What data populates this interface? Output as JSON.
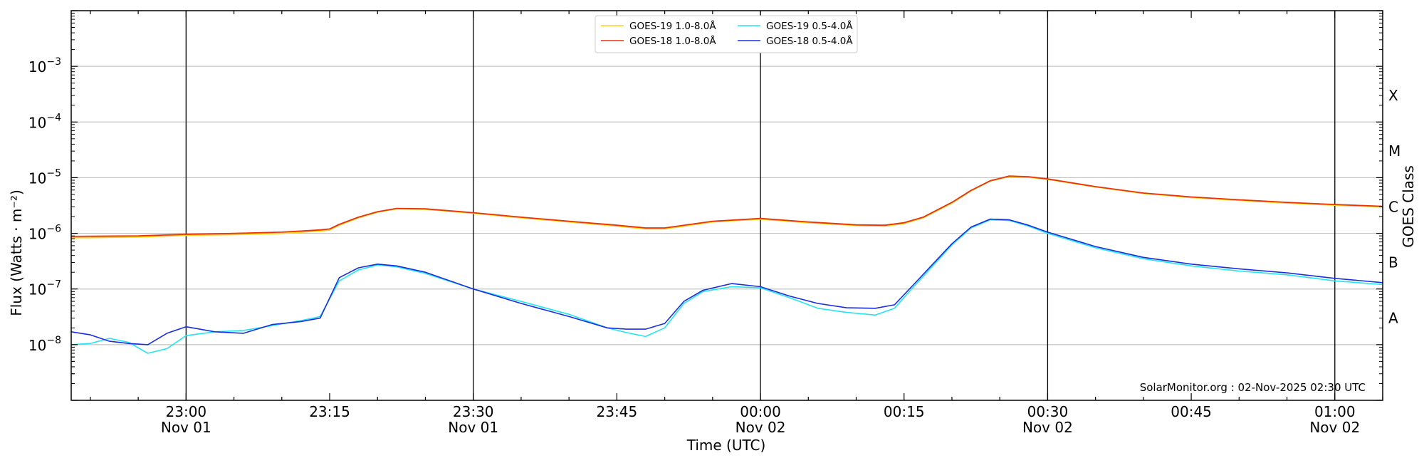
{
  "chart_data": {
    "type": "line",
    "ylabel": "Flux (Watts · m⁻²)",
    "xlabel": "Time (UTC)",
    "right_axis_label": "GOES Class",
    "credit": "SolarMonitor.org : 02-Nov-2025 02:30 UTC",
    "y_scale": "log",
    "ylim": [
      1e-09,
      0.01
    ],
    "y_ticks": [
      {
        "value": 1e-08,
        "base": "10",
        "exp": "−8"
      },
      {
        "value": 1e-07,
        "base": "10",
        "exp": "−7"
      },
      {
        "value": 1e-06,
        "base": "10",
        "exp": "−6"
      },
      {
        "value": 1e-05,
        "base": "10",
        "exp": "−5"
      },
      {
        "value": 0.0001,
        "base": "10",
        "exp": "−4"
      },
      {
        "value": 0.001,
        "base": "10",
        "exp": "−3"
      }
    ],
    "xlim": [
      "2025-11-01T22:48",
      "2025-11-02T01:05"
    ],
    "x_ticks": [
      {
        "time": "2025-11-01T23:00",
        "label": "23:00",
        "date": "Nov 01"
      },
      {
        "time": "2025-11-01T23:15",
        "label": "23:15",
        "date": ""
      },
      {
        "time": "2025-11-01T23:30",
        "label": "23:30",
        "date": "Nov 01"
      },
      {
        "time": "2025-11-01T23:45",
        "label": "23:45",
        "date": ""
      },
      {
        "time": "2025-11-02T00:00",
        "label": "00:00",
        "date": "Nov 02"
      },
      {
        "time": "2025-11-02T00:15",
        "label": "00:15",
        "date": ""
      },
      {
        "time": "2025-11-02T00:30",
        "label": "00:30",
        "date": "Nov 02"
      },
      {
        "time": "2025-11-02T00:45",
        "label": "00:45",
        "date": ""
      },
      {
        "time": "2025-11-02T01:00",
        "label": "01:00",
        "date": "Nov 02"
      }
    ],
    "vertical_lines": [
      "2025-11-01T23:00",
      "2025-11-01T23:30",
      "2025-11-02T00:00",
      "2025-11-02T00:30",
      "2025-11-02T01:00"
    ],
    "horizontal_grid": [
      1e-08,
      1e-07,
      1e-06,
      1e-05,
      0.0001,
      0.001
    ],
    "goes_classes": [
      {
        "label": "A",
        "value": 3e-08
      },
      {
        "label": "B",
        "value": 3e-07
      },
      {
        "label": "C",
        "value": 3e-06
      },
      {
        "label": "M",
        "value": 3e-05
      },
      {
        "label": "X",
        "value": 0.0003
      }
    ],
    "legend_position": "top-center",
    "series": [
      {
        "name": "GOES-19 1.0-8.0Å",
        "color": "#ffd21a",
        "x": [
          "2025-11-01T22:48",
          "2025-11-01T22:55",
          "2025-11-01T23:00",
          "2025-11-01T23:05",
          "2025-11-01T23:10",
          "2025-11-01T23:14",
          "2025-11-01T23:15",
          "2025-11-01T23:16",
          "2025-11-01T23:18",
          "2025-11-01T23:20",
          "2025-11-01T23:22",
          "2025-11-01T23:25",
          "2025-11-01T23:30",
          "2025-11-01T23:35",
          "2025-11-01T23:40",
          "2025-11-01T23:45",
          "2025-11-01T23:48",
          "2025-11-01T23:50",
          "2025-11-01T23:55",
          "2025-11-02T00:00",
          "2025-11-02T00:05",
          "2025-11-02T00:10",
          "2025-11-02T00:13",
          "2025-11-02T00:15",
          "2025-11-02T00:17",
          "2025-11-02T00:20",
          "2025-11-02T00:22",
          "2025-11-02T00:24",
          "2025-11-02T00:26",
          "2025-11-02T00:28",
          "2025-11-02T00:30",
          "2025-11-02T00:35",
          "2025-11-02T00:40",
          "2025-11-02T00:45",
          "2025-11-02T00:50",
          "2025-11-02T00:55",
          "2025-11-02T01:00",
          "2025-11-02T01:05"
        ],
        "values": [
          8.3e-07,
          8.6e-07,
          9.2e-07,
          9.5e-07,
          1e-06,
          1.1e-06,
          1.15e-06,
          1.4e-06,
          1.9e-06,
          2.4e-06,
          2.75e-06,
          2.7e-06,
          2.3e-06,
          1.9e-06,
          1.6e-06,
          1.35e-06,
          1.2e-06,
          1.2e-06,
          1.6e-06,
          1.8e-06,
          1.55e-06,
          1.38e-06,
          1.35e-06,
          1.5e-06,
          1.9e-06,
          3.5e-06,
          5.8e-06,
          8.7e-06,
          1.05e-05,
          1.02e-05,
          9.3e-06,
          6.8e-06,
          5.2e-06,
          4.4e-06,
          3.9e-06,
          3.5e-06,
          3.2e-06,
          3e-06
        ]
      },
      {
        "name": "GOES-18 1.0-8.0Å",
        "color": "#e8340c",
        "x": [
          "2025-11-01T22:48",
          "2025-11-01T22:55",
          "2025-11-01T23:00",
          "2025-11-01T23:05",
          "2025-11-01T23:10",
          "2025-11-01T23:14",
          "2025-11-01T23:15",
          "2025-11-01T23:16",
          "2025-11-01T23:18",
          "2025-11-01T23:20",
          "2025-11-01T23:22",
          "2025-11-01T23:25",
          "2025-11-01T23:30",
          "2025-11-01T23:35",
          "2025-11-01T23:40",
          "2025-11-01T23:45",
          "2025-11-01T23:48",
          "2025-11-01T23:50",
          "2025-11-01T23:55",
          "2025-11-02T00:00",
          "2025-11-02T00:05",
          "2025-11-02T00:10",
          "2025-11-02T00:13",
          "2025-11-02T00:15",
          "2025-11-02T00:17",
          "2025-11-02T00:20",
          "2025-11-02T00:22",
          "2025-11-02T00:24",
          "2025-11-02T00:26",
          "2025-11-02T00:28",
          "2025-11-02T00:30",
          "2025-11-02T00:35",
          "2025-11-02T00:40",
          "2025-11-02T00:45",
          "2025-11-02T00:50",
          "2025-11-02T00:55",
          "2025-11-02T01:00",
          "2025-11-02T01:05"
        ],
        "values": [
          8.8e-07,
          9e-07,
          9.6e-07,
          1e-06,
          1.05e-06,
          1.15e-06,
          1.2e-06,
          1.45e-06,
          1.95e-06,
          2.45e-06,
          2.8e-06,
          2.75e-06,
          2.35e-06,
          1.95e-06,
          1.65e-06,
          1.4e-06,
          1.25e-06,
          1.25e-06,
          1.65e-06,
          1.85e-06,
          1.6e-06,
          1.42e-06,
          1.4e-06,
          1.55e-06,
          1.95e-06,
          3.6e-06,
          5.9e-06,
          8.8e-06,
          1.07e-05,
          1.04e-05,
          9.5e-06,
          6.9e-06,
          5.3e-06,
          4.5e-06,
          4e-06,
          3.6e-06,
          3.3e-06,
          3.05e-06
        ]
      },
      {
        "name": "GOES-19 0.5-4.0Å",
        "color": "#22e5f0",
        "x": [
          "2025-11-01T22:48",
          "2025-11-01T22:50",
          "2025-11-01T22:52",
          "2025-11-01T22:54",
          "2025-11-01T22:56",
          "2025-11-01T22:58",
          "2025-11-01T23:00",
          "2025-11-01T23:03",
          "2025-11-01T23:06",
          "2025-11-01T23:09",
          "2025-11-01T23:12",
          "2025-11-01T23:14",
          "2025-11-01T23:16",
          "2025-11-01T23:18",
          "2025-11-01T23:20",
          "2025-11-01T23:22",
          "2025-11-01T23:25",
          "2025-11-01T23:30",
          "2025-11-01T23:35",
          "2025-11-01T23:40",
          "2025-11-01T23:44",
          "2025-11-01T23:46",
          "2025-11-01T23:48",
          "2025-11-01T23:50",
          "2025-11-01T23:52",
          "2025-11-01T23:54",
          "2025-11-01T23:57",
          "2025-11-02T00:00",
          "2025-11-02T00:03",
          "2025-11-02T00:06",
          "2025-11-02T00:09",
          "2025-11-02T00:12",
          "2025-11-02T00:14",
          "2025-11-02T00:16",
          "2025-11-02T00:18",
          "2025-11-02T00:20",
          "2025-11-02T00:22",
          "2025-11-02T00:24",
          "2025-11-02T00:26",
          "2025-11-02T00:28",
          "2025-11-02T00:30",
          "2025-11-02T00:35",
          "2025-11-02T00:40",
          "2025-11-02T00:45",
          "2025-11-02T00:50",
          "2025-11-02T00:55",
          "2025-11-02T01:00",
          "2025-11-02T01:05"
        ],
        "values": [
          1e-08,
          1.05e-08,
          1.3e-08,
          1.1e-08,
          7e-09,
          8.5e-09,
          1.45e-08,
          1.7e-08,
          1.8e-08,
          2.2e-08,
          2.7e-08,
          3.2e-08,
          1.4e-07,
          2.2e-07,
          2.7e-07,
          2.5e-07,
          1.9e-07,
          1e-07,
          6e-08,
          3.5e-08,
          2e-08,
          1.65e-08,
          1.4e-08,
          2e-08,
          5.5e-08,
          9e-08,
          1.1e-07,
          1.05e-07,
          7e-08,
          4.5e-08,
          3.8e-08,
          3.4e-08,
          4.5e-08,
          1.1e-07,
          2.6e-07,
          6.2e-07,
          1.25e-06,
          1.75e-06,
          1.7e-06,
          1.35e-06,
          1e-06,
          5.5e-07,
          3.5e-07,
          2.6e-07,
          2.1e-07,
          1.8e-07,
          1.4e-07,
          1.2e-07
        ]
      },
      {
        "name": "GOES-18 0.5-4.0Å",
        "color": "#1a2ee0",
        "x": [
          "2025-11-01T22:48",
          "2025-11-01T22:50",
          "2025-11-01T22:52",
          "2025-11-01T22:54",
          "2025-11-01T22:56",
          "2025-11-01T22:58",
          "2025-11-01T23:00",
          "2025-11-01T23:03",
          "2025-11-01T23:06",
          "2025-11-01T23:09",
          "2025-11-01T23:12",
          "2025-11-01T23:14",
          "2025-11-01T23:16",
          "2025-11-01T23:18",
          "2025-11-01T23:20",
          "2025-11-01T23:22",
          "2025-11-01T23:25",
          "2025-11-01T23:30",
          "2025-11-01T23:35",
          "2025-11-01T23:40",
          "2025-11-01T23:44",
          "2025-11-01T23:46",
          "2025-11-01T23:48",
          "2025-11-01T23:50",
          "2025-11-01T23:52",
          "2025-11-01T23:54",
          "2025-11-01T23:57",
          "2025-11-02T00:00",
          "2025-11-02T00:03",
          "2025-11-02T00:06",
          "2025-11-02T00:09",
          "2025-11-02T00:12",
          "2025-11-02T00:14",
          "2025-11-02T00:16",
          "2025-11-02T00:18",
          "2025-11-02T00:20",
          "2025-11-02T00:22",
          "2025-11-02T00:24",
          "2025-11-02T00:26",
          "2025-11-02T00:28",
          "2025-11-02T00:30",
          "2025-11-02T00:35",
          "2025-11-02T00:40",
          "2025-11-02T00:45",
          "2025-11-02T00:50",
          "2025-11-02T00:55",
          "2025-11-02T01:00",
          "2025-11-02T01:05"
        ],
        "values": [
          1.7e-08,
          1.5e-08,
          1.15e-08,
          1.05e-08,
          1e-08,
          1.6e-08,
          2.1e-08,
          1.7e-08,
          1.6e-08,
          2.3e-08,
          2.6e-08,
          3e-08,
          1.6e-07,
          2.4e-07,
          2.8e-07,
          2.6e-07,
          2e-07,
          1e-07,
          5.5e-08,
          3.2e-08,
          2e-08,
          1.9e-08,
          1.9e-08,
          2.4e-08,
          6e-08,
          9.5e-08,
          1.25e-07,
          1.1e-07,
          7.5e-08,
          5.5e-08,
          4.6e-08,
          4.5e-08,
          5.2e-08,
          1.2e-07,
          2.8e-07,
          6.5e-07,
          1.3e-06,
          1.8e-06,
          1.75e-06,
          1.4e-06,
          1.05e-06,
          5.8e-07,
          3.7e-07,
          2.8e-07,
          2.3e-07,
          1.95e-07,
          1.55e-07,
          1.3e-07
        ]
      }
    ]
  }
}
